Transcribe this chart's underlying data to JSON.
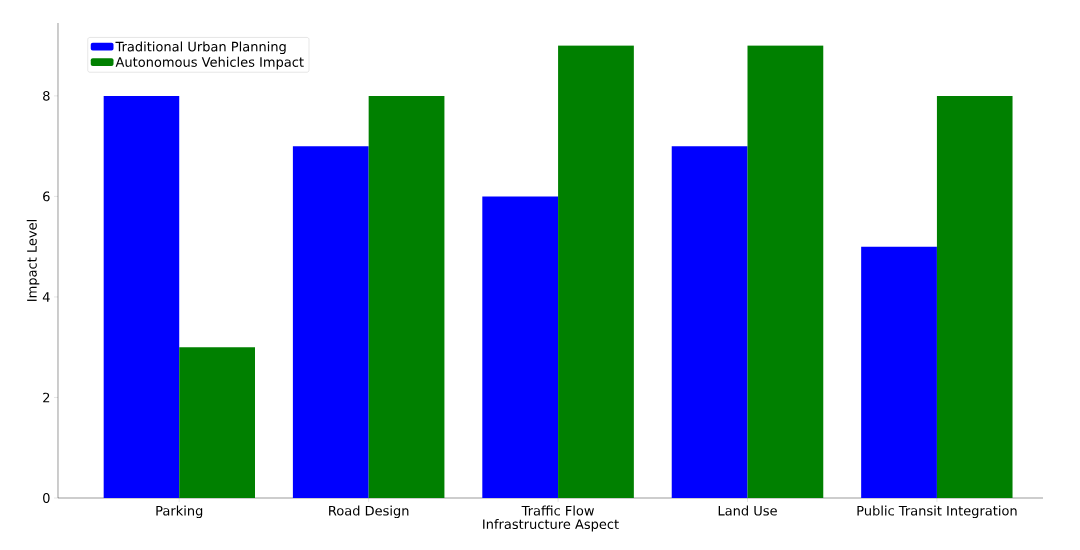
{
  "chart_data": {
    "type": "bar",
    "xlabel": "Infrastructure Aspect",
    "ylabel": "Impact Level",
    "categories": [
      "Parking",
      "Road Design",
      "Traffic Flow",
      "Land Use",
      "Public Transit Integration"
    ],
    "series": [
      {
        "name": "Traditional Urban Planning",
        "color": "#0000ff",
        "values": [
          8,
          7,
          6,
          7,
          5
        ]
      },
      {
        "name": "Autonomous Vehicles Impact",
        "color": "#008000",
        "values": [
          3,
          8,
          9,
          9,
          8
        ]
      }
    ],
    "ylim": [
      0,
      9.45
    ],
    "yticks": [
      0,
      2,
      4,
      6,
      8
    ],
    "grid": false,
    "legend": "top left"
  }
}
